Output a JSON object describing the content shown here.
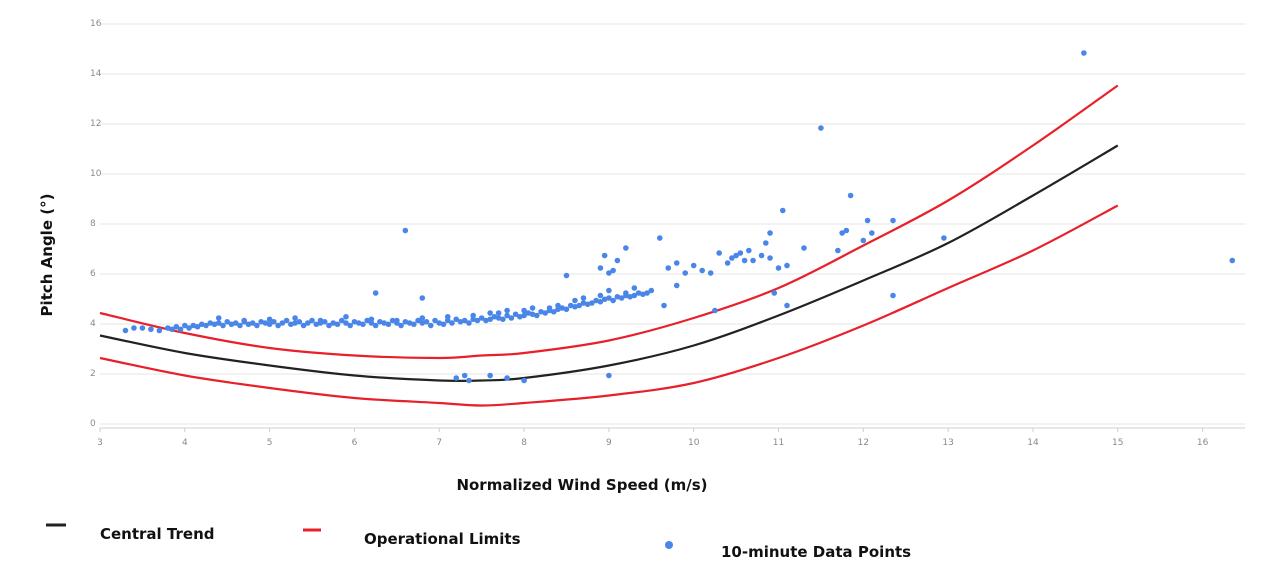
{
  "chart_data": {
    "type": "scatter",
    "title": "",
    "xlabel": "Normalized Wind Speed (m/s)",
    "ylabel": "Pitch Angle (°)",
    "xlim": [
      3,
      16.5
    ],
    "ylim": [
      0,
      16
    ],
    "x_ticks": [
      "3",
      "4",
      "5",
      "6",
      "7",
      "8",
      "9",
      "10",
      "11",
      "12",
      "13",
      "14",
      "15",
      "16"
    ],
    "y_ticks": [
      "0",
      "2",
      "4",
      "6",
      "8",
      "10",
      "12",
      "14",
      "16"
    ],
    "grid": "horizontal",
    "legend_position": "bottom",
    "colors": {
      "points": "#4a86e8",
      "trend": "#222222",
      "limits": "#e8202a",
      "grid": "#e6e6e6"
    },
    "series": [
      {
        "name": "Central Trend",
        "kind": "line",
        "x": [
          3,
          4,
          5,
          6,
          7,
          7.5,
          8,
          9,
          10,
          11,
          12,
          13,
          14,
          15
        ],
        "y": [
          3.7,
          3.0,
          2.5,
          2.1,
          1.9,
          1.9,
          2.0,
          2.5,
          3.3,
          4.5,
          5.9,
          7.4,
          9.3,
          11.3
        ]
      },
      {
        "name": "Operational Limits",
        "kind": "line",
        "x": [
          3,
          4,
          5,
          6,
          7,
          7.5,
          8,
          9,
          10,
          11,
          12,
          13,
          14,
          15
        ],
        "y": [
          4.6,
          3.8,
          3.2,
          2.9,
          2.8,
          2.9,
          3.0,
          3.5,
          4.4,
          5.6,
          7.3,
          9.1,
          11.3,
          13.7
        ]
      },
      {
        "name": "",
        "kind": "line",
        "x": [
          3,
          4,
          5,
          6,
          7,
          7.5,
          8,
          9,
          10,
          11,
          12,
          13,
          14,
          15
        ],
        "y": [
          2.8,
          2.1,
          1.6,
          1.2,
          1.0,
          0.9,
          1.0,
          1.3,
          1.8,
          2.8,
          4.1,
          5.6,
          7.1,
          8.9
        ]
      },
      {
        "name": "10-minute Data Points",
        "kind": "scatter",
        "x": [
          3.3,
          3.4,
          3.5,
          3.6,
          3.7,
          3.8,
          3.85,
          3.9,
          3.95,
          4.0,
          4.05,
          4.1,
          4.15,
          4.2,
          4.25,
          4.3,
          4.35,
          4.4,
          4.45,
          4.5,
          4.55,
          4.6,
          4.65,
          4.7,
          4.75,
          4.8,
          4.85,
          4.9,
          4.95,
          5.0,
          5.05,
          5.1,
          5.15,
          5.2,
          5.25,
          5.3,
          5.35,
          5.4,
          5.45,
          5.5,
          5.55,
          5.6,
          5.65,
          5.7,
          5.75,
          5.8,
          5.85,
          5.9,
          5.95,
          6.0,
          6.05,
          6.1,
          6.15,
          6.2,
          6.25,
          6.3,
          6.35,
          6.4,
          6.45,
          6.5,
          6.55,
          6.6,
          6.65,
          6.7,
          6.75,
          6.8,
          6.85,
          6.9,
          6.95,
          7.0,
          7.05,
          7.1,
          7.15,
          7.2,
          7.25,
          7.3,
          7.35,
          7.4,
          7.45,
          7.5,
          7.55,
          7.6,
          7.65,
          7.7,
          7.75,
          7.8,
          7.85,
          7.9,
          7.95,
          8.0,
          8.05,
          8.1,
          8.15,
          8.2,
          8.25,
          8.3,
          8.35,
          8.4,
          8.45,
          8.5,
          8.55,
          8.6,
          8.65,
          8.7,
          8.75,
          8.8,
          8.85,
          8.9,
          8.95,
          9.0,
          9.05,
          9.1,
          9.15,
          9.2,
          9.25,
          9.3,
          9.35,
          9.4,
          9.45,
          9.5,
          4.4,
          4.7,
          5.0,
          5.3,
          5.6,
          5.9,
          6.2,
          6.5,
          6.8,
          7.1,
          7.4,
          7.7,
          8.0,
          8.3,
          8.6,
          8.9,
          9.2,
          7.6,
          7.8,
          8.1,
          8.4,
          8.7,
          9.0,
          9.3,
          6.6,
          6.25,
          6.8,
          8.5,
          8.9,
          8.95,
          9.05,
          9.1,
          9.2,
          9.0,
          9.6,
          9.7,
          9.8,
          9.9,
          10.0,
          10.1,
          10.2,
          10.3,
          10.4,
          10.45,
          10.5,
          10.55,
          10.6,
          10.65,
          10.7,
          10.8,
          10.9,
          11.0,
          11.05,
          11.1,
          11.3,
          11.5,
          11.7,
          11.75,
          11.8,
          11.85,
          12.0,
          12.05,
          12.1,
          12.35,
          12.35,
          12.95,
          14.6,
          16.35,
          10.25,
          10.95,
          11.1,
          9.65,
          9.8,
          7.2,
          7.3,
          7.35,
          7.6,
          7.8,
          8.0,
          9.0,
          10.9,
          10.85
        ],
        "y": [
          3.9,
          4.0,
          4.0,
          3.95,
          3.9,
          4.0,
          3.95,
          4.05,
          3.95,
          4.1,
          4.0,
          4.1,
          4.05,
          4.15,
          4.1,
          4.2,
          4.15,
          4.2,
          4.1,
          4.25,
          4.15,
          4.2,
          4.1,
          4.25,
          4.15,
          4.2,
          4.1,
          4.25,
          4.2,
          4.15,
          4.25,
          4.1,
          4.2,
          4.3,
          4.15,
          4.2,
          4.25,
          4.1,
          4.2,
          4.3,
          4.15,
          4.2,
          4.25,
          4.1,
          4.2,
          4.15,
          4.3,
          4.2,
          4.1,
          4.25,
          4.2,
          4.15,
          4.3,
          4.2,
          4.1,
          4.25,
          4.2,
          4.15,
          4.3,
          4.2,
          4.1,
          4.25,
          4.2,
          4.15,
          4.3,
          4.2,
          4.25,
          4.1,
          4.3,
          4.2,
          4.15,
          4.3,
          4.2,
          4.35,
          4.25,
          4.3,
          4.2,
          4.35,
          4.3,
          4.4,
          4.3,
          4.35,
          4.45,
          4.4,
          4.35,
          4.5,
          4.4,
          4.55,
          4.45,
          4.5,
          4.6,
          4.55,
          4.5,
          4.65,
          4.6,
          4.7,
          4.65,
          4.75,
          4.8,
          4.75,
          4.9,
          4.85,
          4.9,
          5.0,
          4.95,
          5.0,
          5.1,
          5.05,
          5.15,
          5.2,
          5.1,
          5.25,
          5.2,
          5.3,
          5.25,
          5.3,
          5.4,
          5.35,
          5.4,
          5.5,
          4.4,
          4.3,
          4.35,
          4.4,
          4.3,
          4.45,
          4.35,
          4.3,
          4.4,
          4.45,
          4.5,
          4.6,
          4.7,
          4.8,
          5.1,
          5.3,
          5.4,
          4.6,
          4.7,
          4.8,
          4.9,
          5.2,
          5.5,
          5.6,
          7.9,
          5.4,
          5.2,
          6.1,
          6.4,
          6.9,
          6.3,
          6.7,
          7.2,
          6.2,
          7.6,
          6.4,
          6.6,
          6.2,
          6.5,
          6.3,
          6.2,
          7.0,
          6.6,
          6.8,
          6.9,
          7.0,
          6.7,
          7.1,
          6.7,
          6.9,
          7.8,
          6.4,
          8.7,
          6.5,
          7.2,
          12.0,
          7.1,
          7.8,
          7.9,
          9.3,
          7.5,
          8.3,
          7.8,
          8.3,
          5.3,
          7.6,
          15.0,
          6.7,
          4.7,
          5.4,
          4.9,
          4.9,
          5.7,
          2.0,
          2.1,
          1.9,
          2.1,
          2.0,
          1.9,
          2.1,
          6.8,
          7.4
        ]
      }
    ]
  },
  "legend": {
    "central_trend": "Central Trend",
    "operational_limits": "Operational Limits",
    "data_points": "10-minute Data Points"
  }
}
